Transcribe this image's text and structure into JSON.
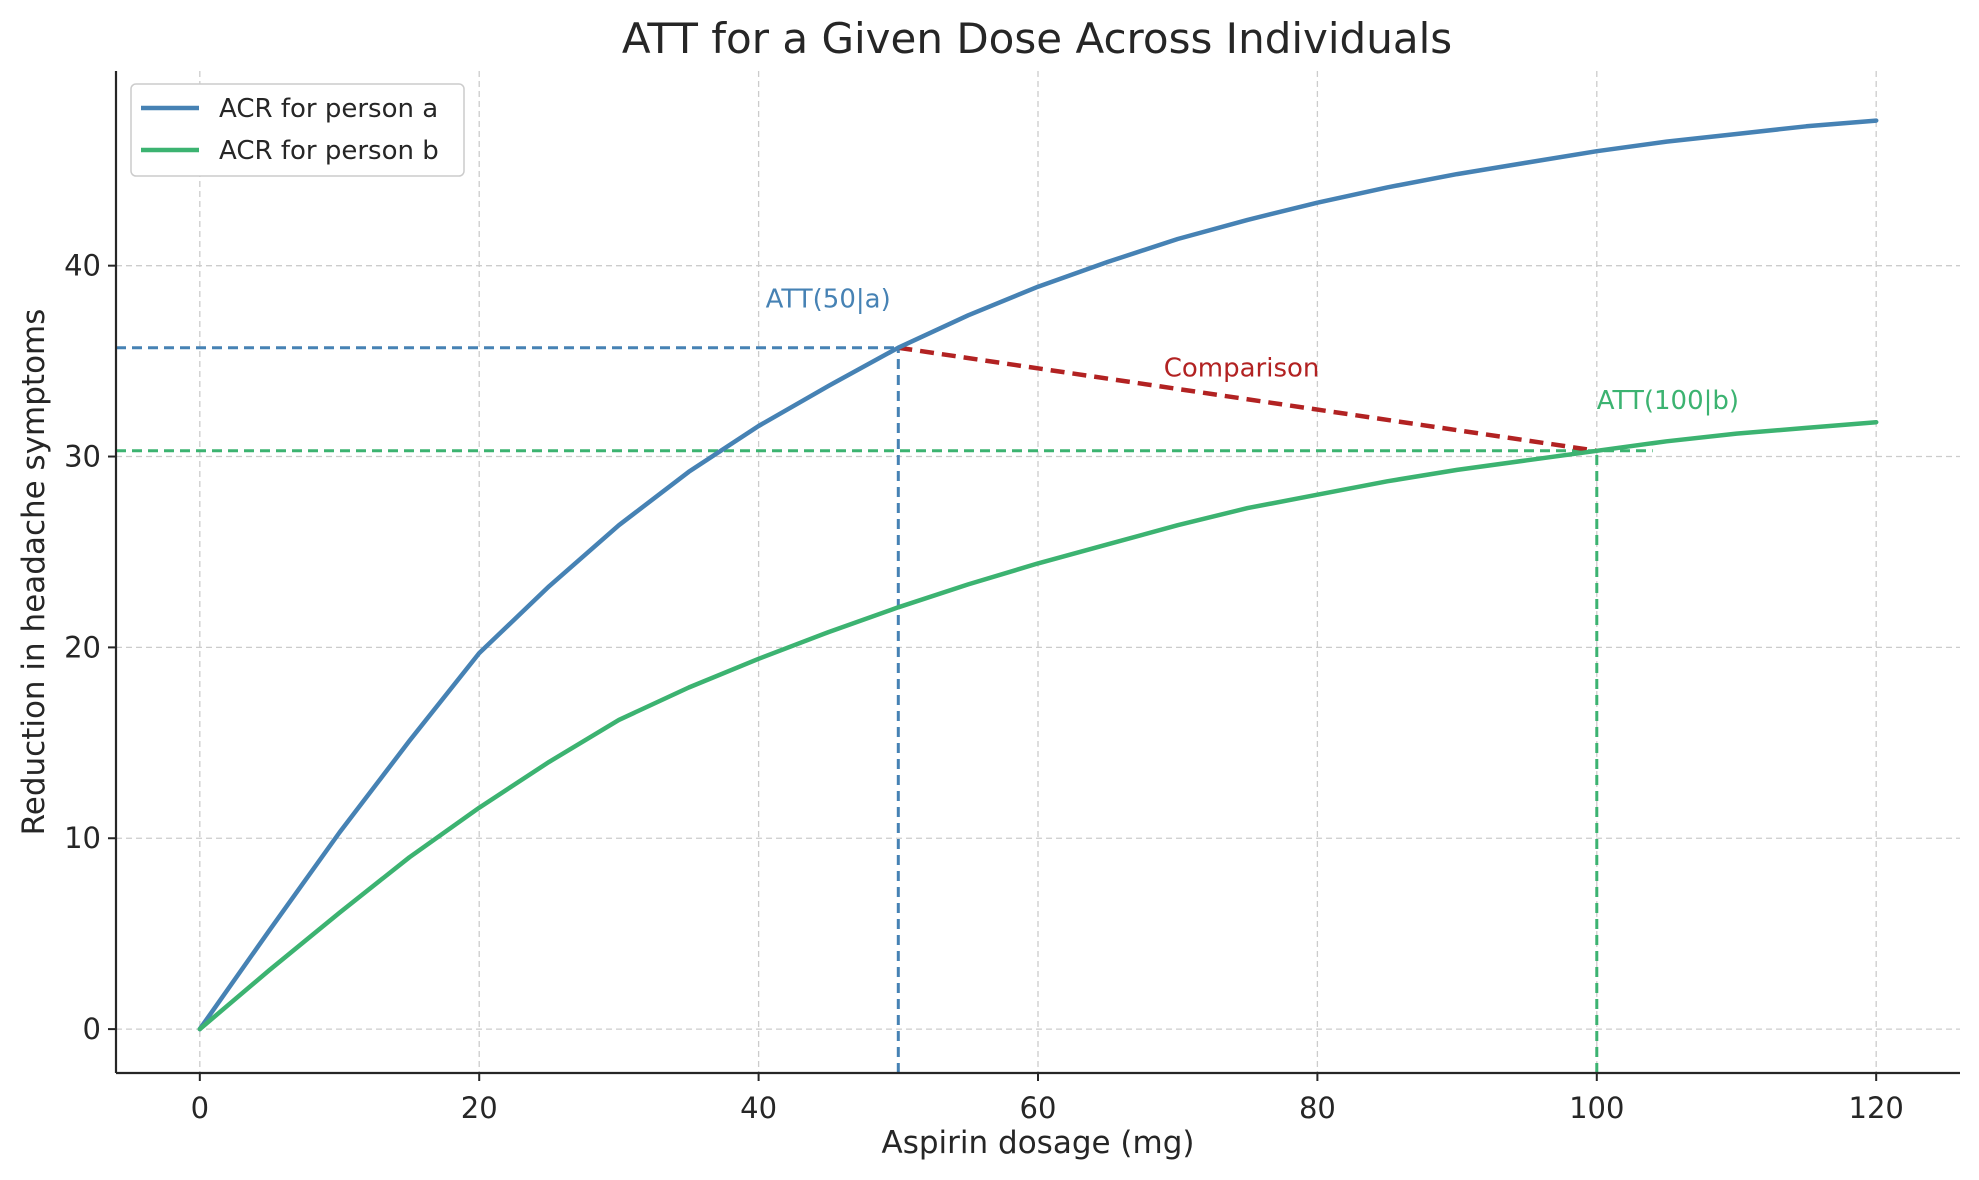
{
  "chart_data": {
    "type": "line",
    "title": "ATT for a Given Dose Across Individuals",
    "xlabel": "Aspirin dosage (mg)",
    "ylabel": "Reduction in headache symptoms",
    "xlim": [
      -6,
      126
    ],
    "ylim": [
      -2.3,
      50.2
    ],
    "xticks": [
      0,
      20,
      40,
      60,
      80,
      100,
      120
    ],
    "yticks": [
      0,
      10,
      20,
      30,
      40
    ],
    "grid": true,
    "legend_position": "top-left",
    "series": [
      {
        "name": "ACR for person a",
        "color": "#4682b4",
        "x": [
          0,
          5,
          10,
          15,
          20,
          25,
          30,
          35,
          40,
          45,
          50,
          55,
          60,
          65,
          70,
          75,
          80,
          85,
          90,
          95,
          100,
          105,
          110,
          115,
          120
        ],
        "y": [
          0,
          5.2,
          10.3,
          15.1,
          19.7,
          23.2,
          26.4,
          29.2,
          31.6,
          33.7,
          35.7,
          37.4,
          38.9,
          40.2,
          41.4,
          42.4,
          43.3,
          44.1,
          44.8,
          45.4,
          46.0,
          46.5,
          46.9,
          47.3,
          47.6
        ]
      },
      {
        "name": "ACR for person b",
        "color": "#3cb371",
        "x": [
          0,
          5,
          10,
          15,
          20,
          25,
          30,
          35,
          40,
          45,
          50,
          55,
          60,
          65,
          70,
          75,
          80,
          85,
          90,
          95,
          100,
          105,
          110,
          115,
          120
        ],
        "y": [
          0,
          3.1,
          6.1,
          9.0,
          11.6,
          14.0,
          16.2,
          17.9,
          19.4,
          20.8,
          22.1,
          23.3,
          24.4,
          25.4,
          26.4,
          27.3,
          28.0,
          28.7,
          29.3,
          29.8,
          30.3,
          30.8,
          31.2,
          31.5,
          31.8
        ]
      }
    ],
    "reference_lines": [
      {
        "kind": "horizontal",
        "y": 35.7,
        "x_from": -6,
        "x_to": 50,
        "color": "#4682b4"
      },
      {
        "kind": "vertical",
        "x": 50,
        "y_from": -2.3,
        "y_to": 35.7,
        "color": "#4682b4"
      },
      {
        "kind": "horizontal",
        "y": 30.3,
        "x_from": -6,
        "x_to": 104,
        "color": "#3cb371"
      },
      {
        "kind": "vertical",
        "x": 100,
        "y_from": -2.3,
        "y_to": 30.3,
        "color": "#3cb371"
      },
      {
        "kind": "segment",
        "x1": 50,
        "y1": 35.7,
        "x2": 100,
        "y2": 30.3,
        "color": "#b22222"
      }
    ],
    "annotations": [
      {
        "text": "ATT(50|a)",
        "x": 40.5,
        "y": 37.8,
        "color": "#4682b4"
      },
      {
        "text": "Comparison",
        "x": 69,
        "y": 34.2,
        "color": "#b22222"
      },
      {
        "text": "ATT(100|b)",
        "x": 100,
        "y": 32.5,
        "color": "#3cb371"
      }
    ]
  }
}
